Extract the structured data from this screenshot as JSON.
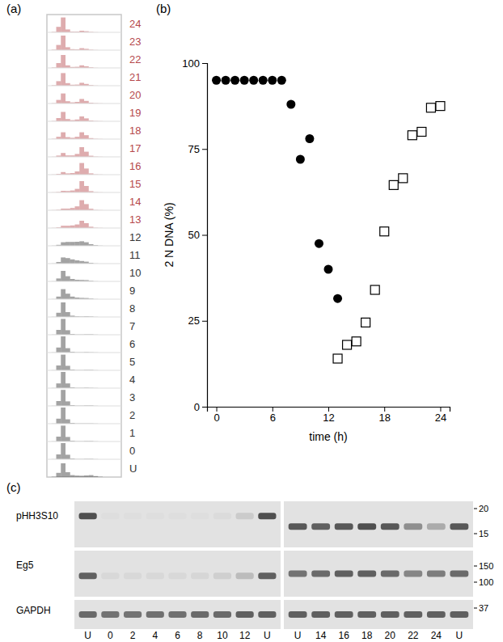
{
  "chart_data": [
    {
      "type": "histogram",
      "title": "(a)",
      "tick_labels": false,
      "bins": [
        0,
        1,
        2,
        3,
        4,
        5,
        6,
        7,
        8,
        9,
        10,
        11,
        12,
        13,
        14,
        15,
        16
      ],
      "xlim": [
        0,
        16
      ],
      "ylim": [
        0,
        100
      ],
      "series": [
        {
          "name": "24",
          "color": "#b5474b",
          "values": [
            0,
            3,
            34,
            92,
            18,
            5,
            5,
            10,
            7,
            3,
            1,
            0,
            0,
            0,
            0,
            0
          ]
        },
        {
          "name": "23",
          "color": "#b5474b",
          "values": [
            0,
            3,
            32,
            90,
            18,
            6,
            5,
            12,
            8,
            3,
            1,
            0,
            0,
            0,
            0,
            0
          ]
        },
        {
          "name": "22",
          "color": "#b5474b",
          "values": [
            0,
            3,
            30,
            80,
            16,
            6,
            7,
            16,
            10,
            4,
            1,
            0,
            0,
            0,
            0,
            0
          ]
        },
        {
          "name": "21",
          "color": "#b5474b",
          "values": [
            0,
            3,
            28,
            78,
            16,
            6,
            7,
            18,
            11,
            4,
            1,
            0,
            0,
            0,
            0,
            0
          ]
        },
        {
          "name": "20",
          "color": "#b5474b",
          "values": [
            0,
            2,
            22,
            62,
            14,
            7,
            10,
            28,
            16,
            5,
            2,
            1,
            0,
            0,
            0,
            0
          ]
        },
        {
          "name": "19",
          "color": "#b5474b",
          "values": [
            0,
            2,
            20,
            58,
            14,
            7,
            11,
            30,
            18,
            5,
            2,
            1,
            0,
            0,
            0,
            0
          ]
        },
        {
          "name": "18",
          "color": "#b5474b",
          "values": [
            0,
            2,
            14,
            42,
            12,
            8,
            14,
            42,
            24,
            6,
            2,
            1,
            0,
            0,
            0,
            0
          ]
        },
        {
          "name": "17",
          "color": "#b5474b",
          "values": [
            0,
            1,
            8,
            24,
            9,
            9,
            18,
            60,
            32,
            7,
            2,
            1,
            0,
            0,
            0,
            0
          ]
        },
        {
          "name": "16",
          "color": "#b5474b",
          "values": [
            0,
            1,
            5,
            16,
            8,
            10,
            20,
            72,
            38,
            8,
            2,
            1,
            0,
            0,
            0,
            0
          ]
        },
        {
          "name": "15",
          "color": "#b5474b",
          "values": [
            0,
            1,
            3,
            10,
            9,
            12,
            22,
            70,
            40,
            8,
            2,
            1,
            0,
            0,
            0,
            0
          ]
        },
        {
          "name": "14",
          "color": "#b5474b",
          "values": [
            0,
            1,
            3,
            10,
            10,
            14,
            24,
            62,
            38,
            9,
            2,
            1,
            0,
            0,
            0,
            0
          ]
        },
        {
          "name": "13",
          "color": "#b5474b",
          "values": [
            0,
            1,
            4,
            14,
            14,
            16,
            22,
            45,
            30,
            8,
            2,
            1,
            0,
            0,
            0,
            0
          ]
        },
        {
          "name": "12",
          "color": "#333333",
          "values": [
            0,
            1,
            6,
            22,
            24,
            24,
            25,
            28,
            22,
            10,
            4,
            1,
            0,
            0,
            0,
            0
          ]
        },
        {
          "name": "11",
          "color": "#333333",
          "values": [
            0,
            1,
            10,
            38,
            34,
            26,
            20,
            16,
            12,
            5,
            1,
            0,
            0,
            0,
            0,
            0
          ]
        },
        {
          "name": "10",
          "color": "#333333",
          "values": [
            0,
            1,
            18,
            65,
            32,
            15,
            10,
            9,
            8,
            4,
            1,
            0,
            0,
            0,
            0,
            0
          ]
        },
        {
          "name": "9",
          "color": "#333333",
          "values": [
            0,
            1,
            16,
            62,
            34,
            16,
            10,
            8,
            7,
            4,
            1,
            0,
            0,
            0,
            0,
            0
          ]
        },
        {
          "name": "8",
          "color": "#333333",
          "values": [
            0,
            1,
            26,
            90,
            30,
            8,
            4,
            3,
            4,
            3,
            1,
            0,
            0,
            0,
            0,
            0
          ]
        },
        {
          "name": "7",
          "color": "#333333",
          "values": [
            0,
            1,
            30,
            98,
            28,
            5,
            2,
            2,
            3,
            3,
            1,
            0,
            0,
            0,
            0,
            0
          ]
        },
        {
          "name": "6",
          "color": "#333333",
          "values": [
            0,
            1,
            31,
            100,
            27,
            5,
            2,
            2,
            3,
            2,
            1,
            0,
            0,
            0,
            0,
            0
          ]
        },
        {
          "name": "5",
          "color": "#333333",
          "values": [
            0,
            1,
            30,
            97,
            28,
            5,
            2,
            2,
            3,
            3,
            1,
            0,
            0,
            0,
            0,
            0
          ]
        },
        {
          "name": "4",
          "color": "#333333",
          "values": [
            0,
            1,
            29,
            100,
            29,
            5,
            2,
            2,
            3,
            2,
            1,
            0,
            0,
            0,
            0,
            0
          ]
        },
        {
          "name": "3",
          "color": "#333333",
          "values": [
            0,
            1,
            30,
            99,
            28,
            5,
            2,
            2,
            3,
            3,
            1,
            0,
            0,
            0,
            0,
            0
          ]
        },
        {
          "name": "2",
          "color": "#333333",
          "values": [
            0,
            1,
            31,
            100,
            27,
            5,
            2,
            2,
            2,
            2,
            1,
            0,
            0,
            0,
            0,
            0
          ]
        },
        {
          "name": "1",
          "color": "#333333",
          "values": [
            0,
            1,
            30,
            98,
            28,
            5,
            2,
            2,
            3,
            3,
            1,
            0,
            0,
            0,
            0,
            0
          ]
        },
        {
          "name": "0",
          "color": "#333333",
          "values": [
            0,
            1,
            30,
            100,
            28,
            5,
            2,
            2,
            3,
            3,
            1,
            0,
            0,
            0,
            0,
            0
          ]
        },
        {
          "name": "U",
          "color": "#333333",
          "values": [
            0,
            2,
            26,
            85,
            30,
            12,
            9,
            8,
            10,
            12,
            6,
            2,
            0,
            0,
            0,
            0
          ]
        }
      ]
    },
    {
      "type": "scatter",
      "title": "(b)",
      "x_label": "time (h)",
      "y_label": "2 N DNA (%)",
      "xlim": [
        -1,
        25
      ],
      "ylim": [
        0,
        100
      ],
      "xticks": [
        0,
        6,
        12,
        18,
        24
      ],
      "yticks": [
        0,
        25,
        50,
        75,
        100
      ],
      "series": [
        {
          "color": "#000000",
          "marker": "circle",
          "x": [
            0,
            1,
            2,
            3,
            4,
            5,
            6,
            7,
            8,
            9,
            10,
            11,
            12,
            13
          ],
          "values": [
            95,
            95,
            95,
            95,
            95,
            95,
            95,
            95,
            88,
            72,
            78,
            47.5,
            40,
            31.5
          ]
        },
        {
          "color": "#000000",
          "marker": "square",
          "x": [
            13,
            14,
            15,
            16,
            17,
            18,
            19,
            20,
            21,
            22,
            23,
            24
          ],
          "values": [
            14,
            18,
            19,
            24.5,
            34,
            51,
            64.5,
            66.5,
            79,
            80,
            87,
            87.5
          ]
        }
      ]
    },
    {
      "type": "blot",
      "title": "(c)",
      "rows": [
        "pHH3S10",
        "Eg5",
        "GAPDH"
      ],
      "markers": [
        [
          20,
          15
        ],
        [
          150,
          100
        ],
        [
          37
        ]
      ],
      "panels": [
        {
          "lanes": [
            "U",
            "0",
            "2",
            "4",
            "6",
            "8",
            "10",
            "12",
            "U"
          ],
          "bands": [
            [
              0.8,
              0.02,
              0.02,
              0.02,
              0.02,
              0.02,
              0.03,
              0.12,
              0.8
            ],
            [
              0.7,
              0.05,
              0.05,
              0.05,
              0.05,
              0.06,
              0.1,
              0.2,
              0.7
            ],
            [
              0.65,
              0.6,
              0.6,
              0.62,
              0.62,
              0.65,
              0.65,
              0.7,
              0.7
            ]
          ]
        },
        {
          "lanes": [
            "U",
            "14",
            "16",
            "18",
            "20",
            "22",
            "24",
            "U"
          ],
          "bands": [
            [
              0.75,
              0.7,
              0.75,
              0.8,
              0.75,
              0.45,
              0.3,
              0.75
            ],
            [
              0.6,
              0.65,
              0.7,
              0.7,
              0.65,
              0.5,
              0.55,
              0.65
            ],
            [
              0.7,
              0.7,
              0.7,
              0.7,
              0.7,
              0.7,
              0.7,
              0.7
            ]
          ]
        }
      ]
    }
  ]
}
